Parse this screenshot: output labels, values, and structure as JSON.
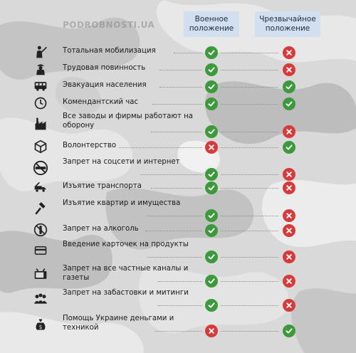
{
  "watermark": "PODROBNOSTI.UA",
  "columns": {
    "war": "Военное положение",
    "emergency": "Чрезвычайное положение"
  },
  "colors": {
    "yes": "#3c9a3c",
    "no": "#d63a3a",
    "header_bg": "#d2dff0"
  },
  "rows": [
    {
      "icon": "soldier-icon",
      "label": "Тотальная мобилизация",
      "war": true,
      "emergency": false
    },
    {
      "icon": "worker-icon",
      "label": "Трудовая повинность",
      "war": true,
      "emergency": false
    },
    {
      "icon": "bus-icon",
      "label": "Эвакуация населения",
      "war": true,
      "emergency": true
    },
    {
      "icon": "clock-icon",
      "label": "Комендантский час",
      "war": true,
      "emergency": true
    },
    {
      "icon": "factory-icon",
      "label": "Все заводы и фирмы работают на оборону",
      "war": true,
      "emergency": false
    },
    {
      "icon": "box-icon",
      "label": "Волонтерство",
      "war": false,
      "emergency": true
    },
    {
      "icon": "no-social-icon",
      "label": "Запрет на соцсети и интернет",
      "war": true,
      "emergency": false
    },
    {
      "icon": "tow-truck-icon",
      "label": "Изъятие транспорта",
      "war": true,
      "emergency": false
    },
    {
      "icon": "hammer-icon",
      "label": "Изъятие квартир и имущества",
      "war": true,
      "emergency": false
    },
    {
      "icon": "no-alcohol-icon",
      "label": "Запрет на алкоголь",
      "war": true,
      "emergency": false
    },
    {
      "icon": "card-icon",
      "label": "Введение карточек на продукты",
      "war": true,
      "emergency": false
    },
    {
      "icon": "tv-icon",
      "label": "Запрет на все частные каналы и газеты",
      "war": true,
      "emergency": false
    },
    {
      "icon": "crowd-icon",
      "label": "Запрет на забастовки и митинги",
      "war": true,
      "emergency": false
    },
    {
      "icon": "money-bag-icon",
      "label": "Помощь Украине деньгами и техникой",
      "war": false,
      "emergency": true
    }
  ]
}
